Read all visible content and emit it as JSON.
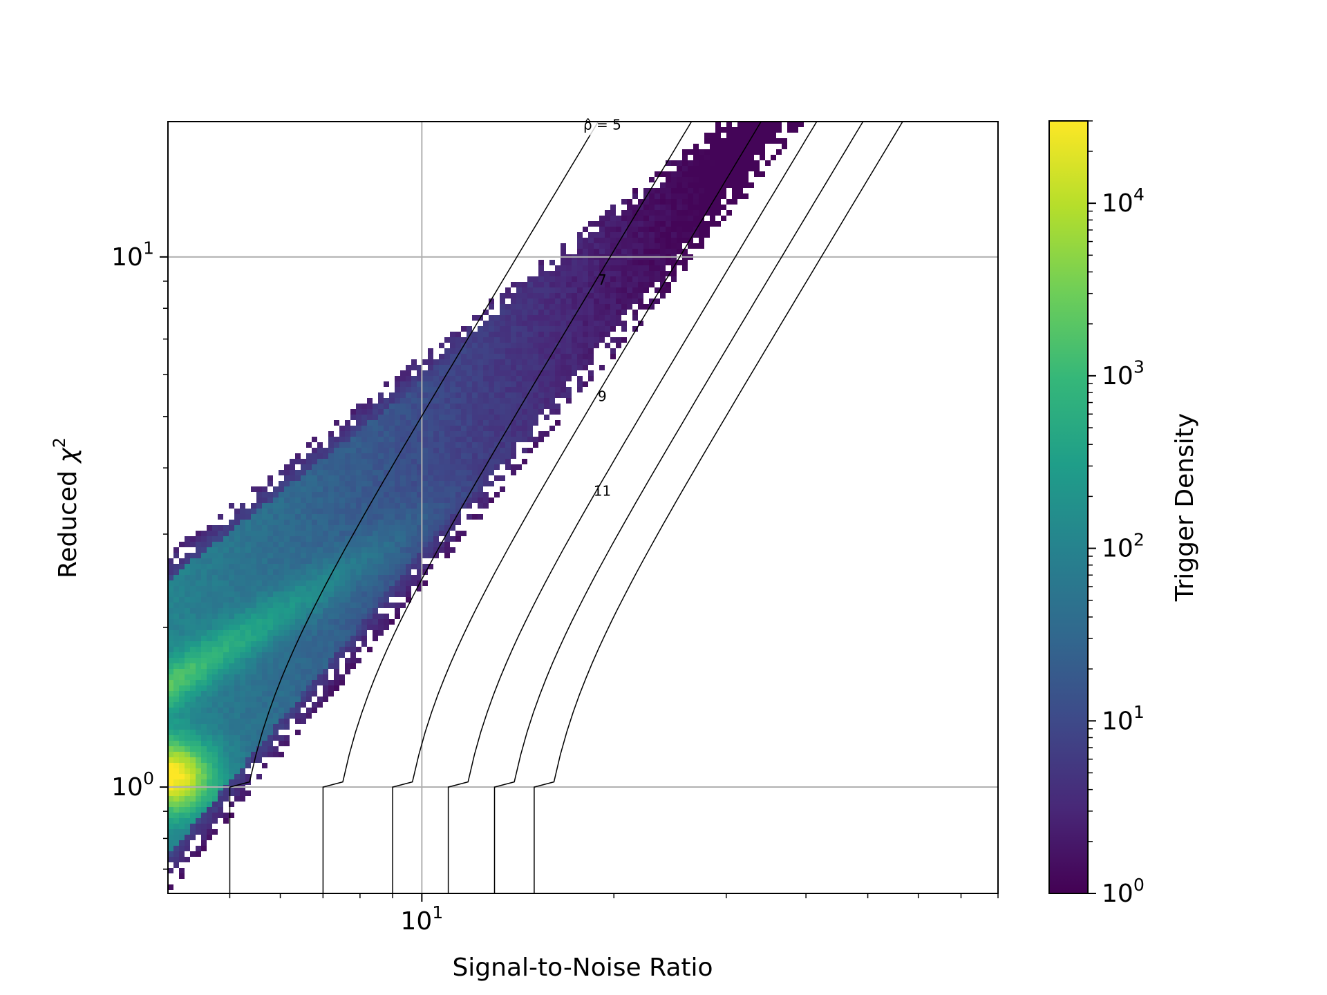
{
  "chart_data": {
    "type": "heatmap",
    "title": "",
    "xlabel": "Signal-to-Noise Ratio",
    "ylabel_main": "Reduced ",
    "ylabel_symbol": "χ",
    "ylabel_sup": "2",
    "x_scale": "log",
    "y_scale": "log",
    "xlim": [
      4.0,
      80.0
    ],
    "ylim": [
      0.63,
      18.0
    ],
    "x_ticks": [
      {
        "value": 10,
        "base": "10",
        "exp": "1"
      }
    ],
    "y_ticks": [
      {
        "value": 1,
        "base": "10",
        "exp": "0"
      },
      {
        "value": 10,
        "base": "10",
        "exp": "1"
      }
    ],
    "grid": true,
    "colorbar": {
      "label": "Trigger Density",
      "scale": "log",
      "range": [
        1,
        30000
      ],
      "colormap": "viridis",
      "ticks": [
        {
          "value": 1,
          "base": "10",
          "exp": "0"
        },
        {
          "value": 10,
          "base": "10",
          "exp": "1"
        },
        {
          "value": 100,
          "base": "10",
          "exp": "2"
        },
        {
          "value": 1000,
          "base": "10",
          "exp": "3"
        },
        {
          "value": 10000,
          "base": "10",
          "exp": "4"
        }
      ]
    },
    "contours": [
      {
        "value": 5,
        "label": "ρ̂ = 5",
        "label_snr": 18.8
      },
      {
        "value": 7,
        "label": "7",
        "label_snr": 18.8
      },
      {
        "value": 9,
        "label": "9",
        "label_snr": 18.8
      },
      {
        "value": 11,
        "label": "11",
        "label_snr": 18.8
      },
      {
        "value": 13,
        "label": ""
      },
      {
        "value": 15,
        "label": ""
      }
    ],
    "density_description_points": {
      "hot_spot": {
        "snr": 4.1,
        "chisq": 1.05,
        "density": 30000
      },
      "ridge": [
        {
          "snr": 4.0,
          "chisq": 1.55,
          "density": 3000
        },
        {
          "snr": 6.0,
          "chisq": 2.3,
          "density": 500
        }
      ]
    }
  },
  "colors": {
    "viridis": [
      "#440154",
      "#482878",
      "#3e4989",
      "#31688e",
      "#26828e",
      "#1f9e89",
      "#35b779",
      "#6ece58",
      "#b5de2b",
      "#fde725"
    ],
    "contour": "#000000",
    "grid": "#b0b0b0",
    "axes": "#000000"
  }
}
